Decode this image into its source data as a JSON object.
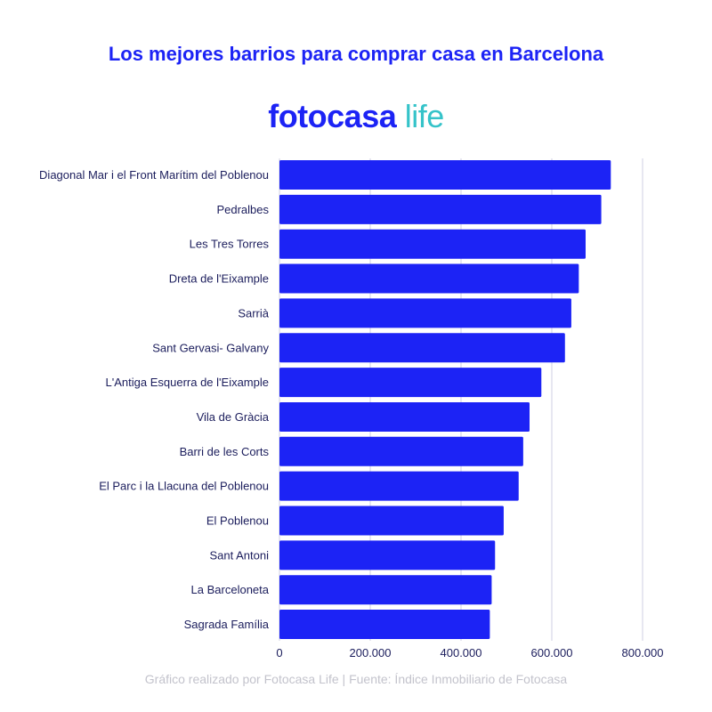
{
  "title": "Los mejores barrios para comprar casa en Barcelona",
  "logo": {
    "brand": "fotocasa",
    "suffix": "life"
  },
  "footer": "Gráfico realizado por Fotocasa Life | Fuente: Índice Inmobiliario de Fotocasa",
  "colors": {
    "bar": "#1c23f5",
    "title": "#1c23f5",
    "grid": "#cfcfe3",
    "logo_suffix": "#35c3c9"
  },
  "chart_data": {
    "type": "bar",
    "orientation": "horizontal",
    "categories": [
      "Diagonal Mar i el Front Marítim del Poblenou",
      "Pedralbes",
      "Les Tres Torres",
      "Dreta de l'Eixample",
      "Sarrià",
      "Sant Gervasi- Galvany",
      "L'Antiga Esquerra de l'Eixample",
      "Vila de Gràcia",
      "Barri de les Corts",
      "El Parc i la Llacuna del Poblenou",
      "El Poblenou",
      "Sant Antoni",
      "La Barceloneta",
      "Sagrada Família"
    ],
    "values": [
      730000,
      709000,
      674500,
      659500,
      643000,
      629000,
      577000,
      551000,
      537000,
      527000,
      494000,
      475000,
      467500,
      463500
    ],
    "xlim": [
      0,
      800000
    ],
    "xticks": [
      0,
      200000,
      400000,
      600000,
      800000
    ],
    "xtick_labels": [
      "0",
      "200.000",
      "400.000",
      "600.000",
      "800.000"
    ],
    "grid": "vertical",
    "title": "Los mejores barrios para comprar casa en Barcelona",
    "xlabel": "",
    "ylabel": ""
  }
}
